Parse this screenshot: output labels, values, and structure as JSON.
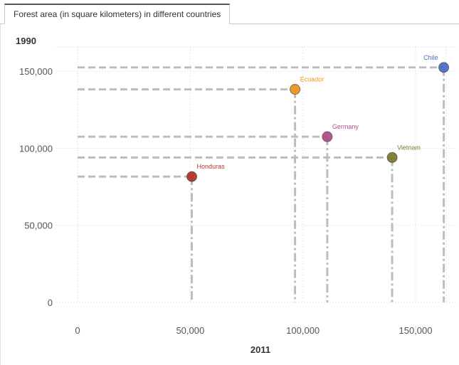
{
  "tab": {
    "label": "Forest area (in square kilometers) in different countries"
  },
  "chart_data": {
    "type": "scatter",
    "title": "Forest area (in square kilometers) in different countries",
    "xlabel": "2011",
    "ylabel": "1990",
    "xlim": [
      -5000,
      165000
    ],
    "ylim": [
      -2000,
      160000
    ],
    "xticks": [
      0,
      50000,
      100000,
      150000
    ],
    "xtick_labels": [
      "0",
      "50,000",
      "100,000",
      "150,000"
    ],
    "yticks": [
      0,
      50000,
      100000,
      150000
    ],
    "ytick_labels": [
      "0",
      "50,000",
      "100,000",
      "150,000"
    ],
    "points": [
      {
        "name": "Chile",
        "x": 162500,
        "y": 152400,
        "color": "#4a6ec2"
      },
      {
        "name": "Ecuador",
        "x": 96500,
        "y": 138200,
        "color": "#f0921e"
      },
      {
        "name": "Germany",
        "x": 110800,
        "y": 107500,
        "color": "#b04e8c"
      },
      {
        "name": "Vietnam",
        "x": 139600,
        "y": 94000,
        "color": "#7e7a2e"
      },
      {
        "name": "Honduras",
        "x": 50700,
        "y": 81600,
        "color": "#b5332a"
      }
    ]
  }
}
